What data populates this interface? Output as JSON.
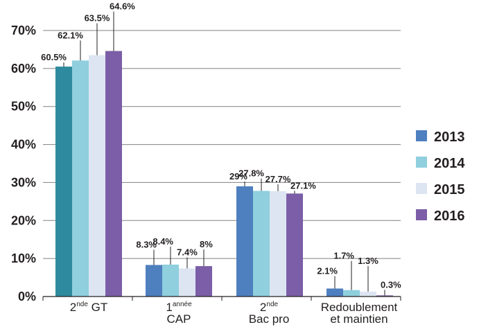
{
  "chart_data": {
    "type": "bar",
    "categories": [
      {
        "main": "2",
        "sup": "nde",
        "after": " GT",
        "line2": ""
      },
      {
        "main": "1",
        "sup": "année",
        "after": "",
        "line2": "CAP"
      },
      {
        "main": "2",
        "sup": "nde",
        "after": "",
        "line2": "Bac pro"
      },
      {
        "main": "Redoublement",
        "sup": "",
        "after": "",
        "line2": "et maintien"
      }
    ],
    "series": [
      {
        "name": "2013",
        "color": "#4e7fbf",
        "first_color": "#2e8a9e",
        "values": [
          60.5,
          8.3,
          29,
          2.1
        ],
        "labels": [
          "60.5%",
          "8.3%",
          "29%",
          "2.1%"
        ]
      },
      {
        "name": "2014",
        "color": "#8fcfde",
        "values": [
          62.1,
          8.4,
          27.8,
          1.7
        ],
        "labels": [
          "62.1%",
          "8.4%",
          "27.8%",
          "1.7%"
        ]
      },
      {
        "name": "2015",
        "color": "#dde5f2",
        "values": [
          63.5,
          7.4,
          27.7,
          1.3
        ],
        "labels": [
          "63.5%",
          "7.4%",
          "27.7%",
          "1.3%"
        ]
      },
      {
        "name": "2016",
        "color": "#7b5ea7",
        "values": [
          64.6,
          8,
          27.1,
          0.3
        ],
        "labels": [
          "64.6%",
          "8%",
          "27.1%",
          "0.3%"
        ]
      }
    ],
    "y_ticks": [
      "0%",
      "10%",
      "20%",
      "30%",
      "40%",
      "50%",
      "60%",
      "70%"
    ],
    "ylim": [
      0,
      70
    ],
    "legend_position": "right",
    "grid": true,
    "gridline_color": "#808080"
  }
}
